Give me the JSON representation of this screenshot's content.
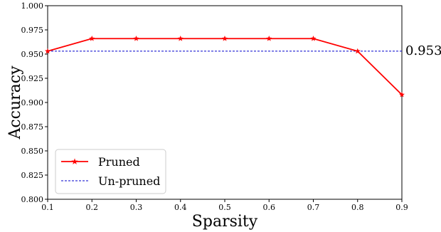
{
  "chart_data": {
    "type": "line",
    "xlabel": "Sparsity",
    "ylabel": "Accuracy",
    "xlim": [
      0.1,
      0.9
    ],
    "ylim": [
      0.8,
      1.0
    ],
    "x_ticks": [
      "0.1",
      "0.2",
      "0.3",
      "0.4",
      "0.5",
      "0.6",
      "0.7",
      "0.8",
      "0.9"
    ],
    "y_ticks": [
      "0.800",
      "0.825",
      "0.850",
      "0.875",
      "0.900",
      "0.925",
      "0.950",
      "0.975",
      "1.000"
    ],
    "grid": false,
    "legend_position": "bottom-left",
    "series": [
      {
        "name": "Pruned",
        "color": "#ff0000",
        "marker": "star",
        "x": [
          0.1,
          0.2,
          0.3,
          0.4,
          0.5,
          0.6,
          0.7,
          0.8,
          0.9
        ],
        "y": [
          0.953,
          0.966,
          0.966,
          0.966,
          0.966,
          0.966,
          0.966,
          0.953,
          0.908
        ]
      },
      {
        "name": "Un-pruned",
        "color": "#0000cc",
        "style": "dashed",
        "y_constant": 0.953
      }
    ],
    "annotations": [
      {
        "text": "0.953"
      }
    ]
  }
}
